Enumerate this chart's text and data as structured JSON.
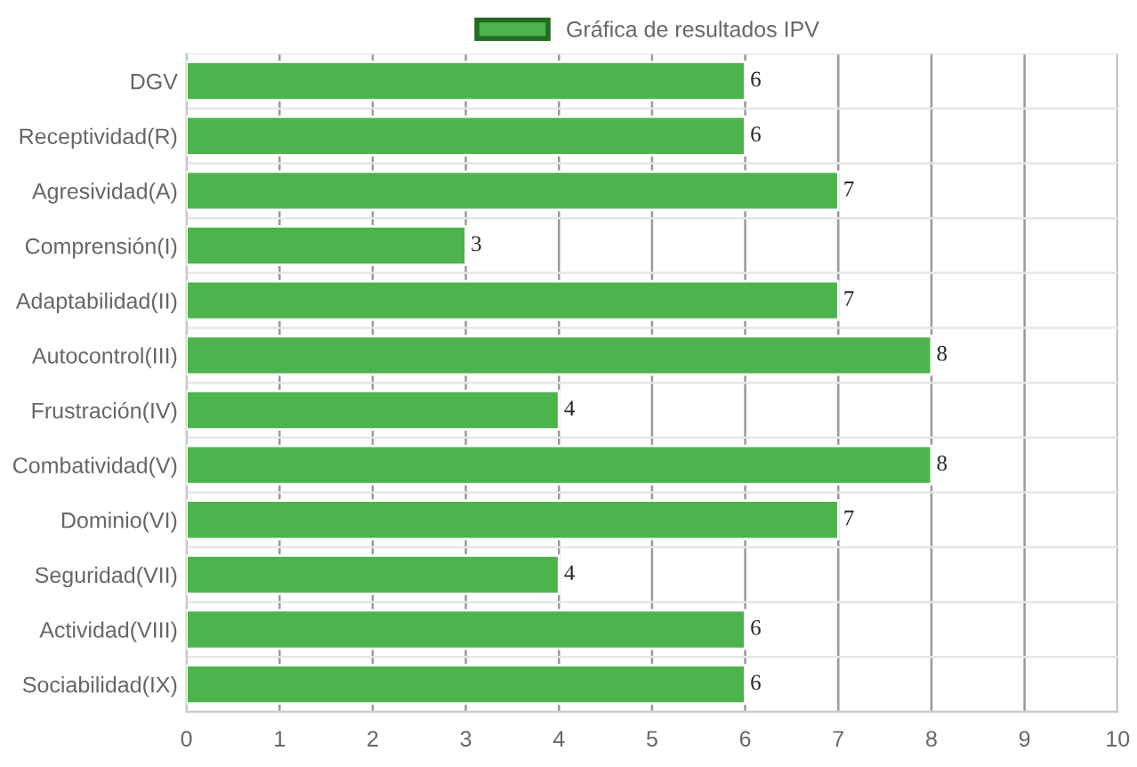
{
  "chart_data": {
    "type": "bar",
    "orientation": "horizontal",
    "categories": [
      "DGV",
      "Receptividad(R)",
      "Agresividad(A)",
      "Comprensión(I)",
      "Adaptabilidad(II)",
      "Autocontrol(III)",
      "Frustración(IV)",
      "Combatividad(V)",
      "Dominio(VI)",
      "Seguridad(VII)",
      "Actividad(VIII)",
      "Sociabilidad(IX)"
    ],
    "series": [
      {
        "name": "Gráfica de resultados IPV",
        "color": "#4db34d",
        "values": [
          6,
          6,
          7,
          3,
          7,
          8,
          4,
          8,
          7,
          4,
          6,
          6
        ]
      }
    ],
    "xlim": [
      0,
      10
    ],
    "xticks": [
      0,
      1,
      2,
      3,
      4,
      5,
      6,
      7,
      8,
      9,
      10
    ],
    "grid": true,
    "legend": "top",
    "data_labels": true
  }
}
